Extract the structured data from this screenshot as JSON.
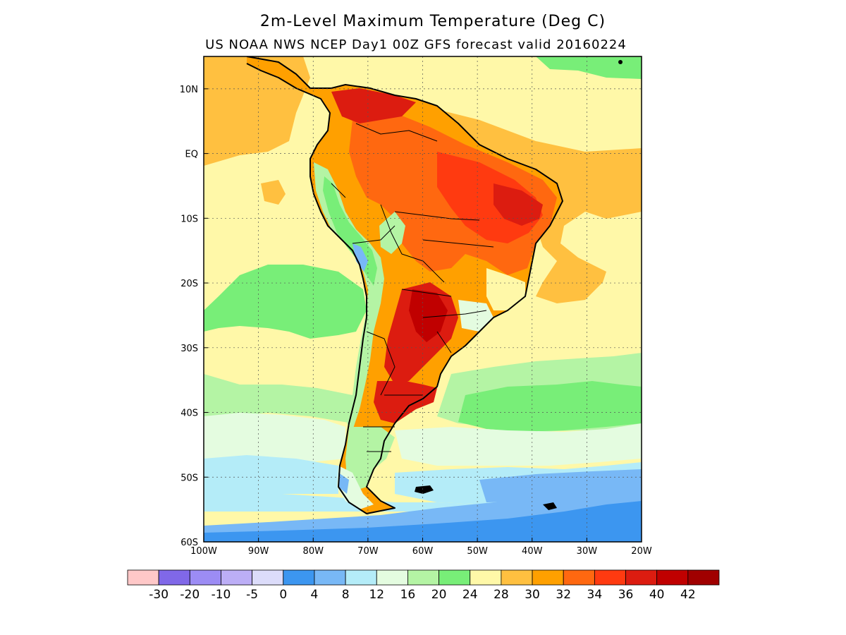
{
  "title": "2m-Level Maximum Temperature (Deg C)",
  "subtitle": "US NOAA NWS NCEP Day1 00Z GFS forecast valid 20160224",
  "map": {
    "region": "South America",
    "lon_range": [
      -100,
      -20
    ],
    "lat_range": [
      -60,
      15
    ],
    "lon_ticks": [
      "100W",
      "90W",
      "80W",
      "70W",
      "60W",
      "50W",
      "40W",
      "30W",
      "20W"
    ],
    "lat_ticks": [
      "10N",
      "EQ",
      "10S",
      "20S",
      "30S",
      "40S",
      "50S",
      "60S"
    ],
    "gridlines": "dotted"
  },
  "colorbar": {
    "colors": [
      "#ffc8c8",
      "#8068e8",
      "#9c8cf4",
      "#bcaef6",
      "#dcdcfa",
      "#3c96f0",
      "#78b8f6",
      "#b4ecf8",
      "#e4fce0",
      "#b4f4a4",
      "#78ee78",
      "#fff8a8",
      "#ffc040",
      "#ffa000",
      "#ff6810",
      "#ff3a10",
      "#dc1c10",
      "#c00000",
      "#a00000"
    ],
    "labels": [
      "-30",
      "-20",
      "-10",
      "-5",
      "0",
      "4",
      "8",
      "12",
      "16",
      "20",
      "24",
      "28",
      "30",
      "32",
      "34",
      "36",
      "40",
      "42"
    ]
  }
}
